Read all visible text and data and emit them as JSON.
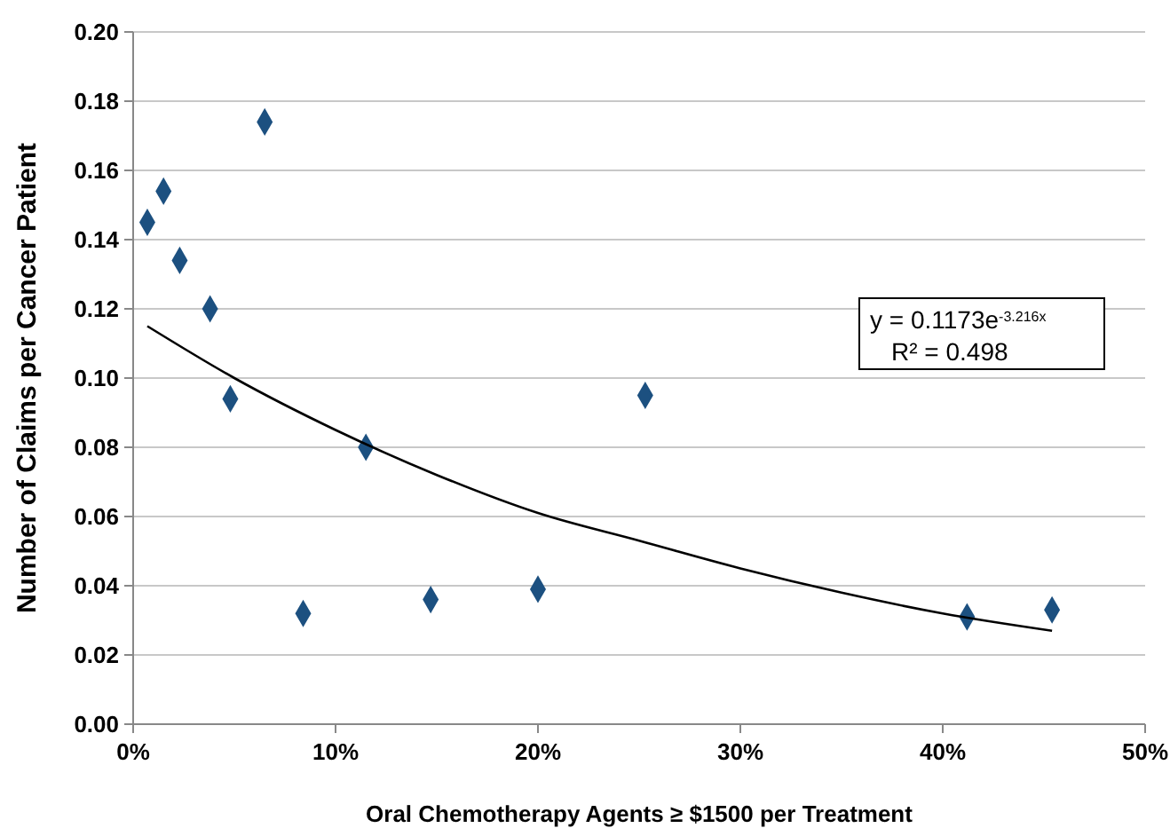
{
  "chart_data": {
    "type": "scatter",
    "xlabel": "Oral Chemotherapy Agents ≥ $1500 per Treatment",
    "ylabel": "Number of Claims per Cancer Patient",
    "xlim": [
      0,
      50
    ],
    "xticks": [
      {
        "value": 0,
        "label": "0%"
      },
      {
        "value": 10,
        "label": "10%"
      },
      {
        "value": 20,
        "label": "20%"
      },
      {
        "value": 30,
        "label": "30%"
      },
      {
        "value": 40,
        "label": "40%"
      },
      {
        "value": 50,
        "label": "50%"
      }
    ],
    "ylim": [
      0,
      0.2
    ],
    "yticks": [
      {
        "value": 0,
        "label": "0.00"
      },
      {
        "value": 0.02,
        "label": "0.02"
      },
      {
        "value": 0.04,
        "label": "0.04"
      },
      {
        "value": 0.06,
        "label": "0.06"
      },
      {
        "value": 0.08,
        "label": "0.08"
      },
      {
        "value": 0.1,
        "label": "0.10"
      },
      {
        "value": 0.12,
        "label": "0.12"
      },
      {
        "value": 0.14,
        "label": "0.14"
      },
      {
        "value": 0.16,
        "label": "0.16"
      },
      {
        "value": 0.18,
        "label": "0.18"
      },
      {
        "value": 0.2,
        "label": "0.20"
      }
    ],
    "grid": "y",
    "series": [
      {
        "marker": "diamond",
        "color": "#1c5080",
        "x": [
          0.7,
          1.5,
          2.3,
          3.8,
          4.8,
          6.5,
          8.4,
          11.5,
          14.7,
          20,
          25.3,
          41.2,
          45.4
        ],
        "values": [
          0.145,
          0.154,
          0.134,
          0.12,
          0.094,
          0.174,
          0.032,
          0.08,
          0.036,
          0.039,
          0.095,
          0.031,
          0.033
        ]
      },
      {
        "type": "line",
        "marker": "none",
        "color": "#000000",
        "x": [
          0.7,
          5,
          10,
          15,
          20,
          25,
          30,
          35,
          40,
          45.4
        ],
        "values": [
          0.115,
          0.1,
          0.085,
          0.072,
          0.061,
          0.053,
          0.045,
          0.038,
          0.032,
          0.027
        ]
      }
    ],
    "annotations": [
      "y = 0.1173e$^{-3.216x}$",
      "R² = 0.498"
    ]
  }
}
